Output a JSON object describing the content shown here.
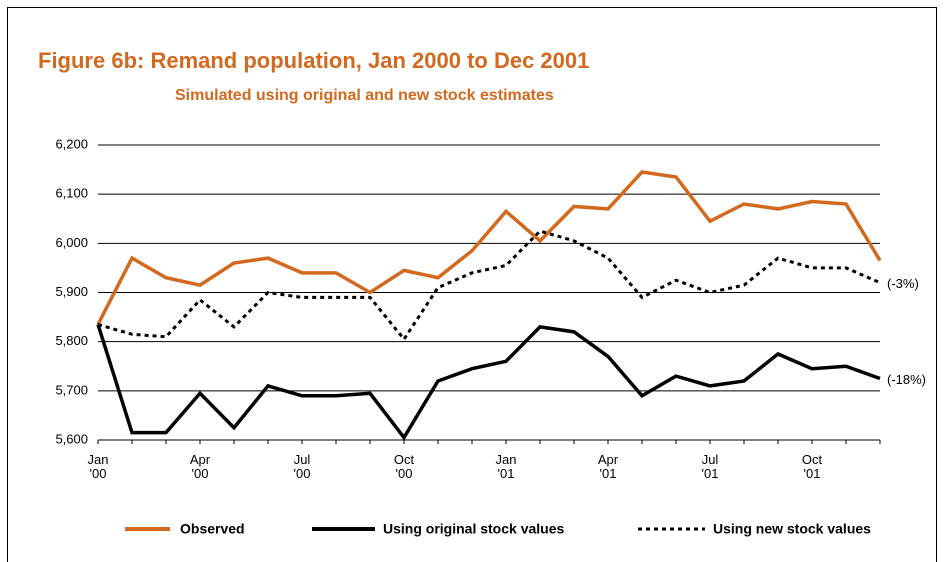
{
  "chart_data": {
    "type": "line",
    "title": "Figure 6b: Remand population, Jan 2000 to Dec 2001",
    "subtitle": "Simulated using original and new stock estimates",
    "categories": [
      "Jan '00",
      null,
      null,
      "Apr '00",
      null,
      null,
      "Jul '00",
      null,
      null,
      "Oct '00",
      null,
      null,
      "Jan '01",
      null,
      null,
      "Apr '01",
      null,
      null,
      "Jul '01",
      null,
      null,
      "Oct '01",
      null,
      null
    ],
    "ylim": [
      5600,
      6200
    ],
    "yticks": [
      {
        "value": 5600,
        "label": "5,600"
      },
      {
        "value": 5700,
        "label": "5,700"
      },
      {
        "value": 5800,
        "label": "5,800"
      },
      {
        "value": 5900,
        "label": "5,900"
      },
      {
        "value": 6000,
        "label": "6,000"
      },
      {
        "value": 6100,
        "label": "6,100"
      },
      {
        "value": 6200,
        "label": "6,200"
      }
    ],
    "grid": true,
    "legend": "bottom",
    "series": [
      {
        "name": "Observed",
        "color": "#d2691e",
        "dash": "solid",
        "values": [
          5835,
          5970,
          5930,
          5915,
          5960,
          5970,
          5940,
          5940,
          5900,
          5945,
          5930,
          5985,
          6065,
          6005,
          6075,
          6070,
          6145,
          6135,
          6045,
          6080,
          6070,
          6085,
          6080,
          5965
        ]
      },
      {
        "name": "Using original stock values",
        "color": "#000000",
        "dash": "solid",
        "end_label": "(-18%)",
        "values": [
          5835,
          5615,
          5615,
          5695,
          5625,
          5710,
          5690,
          5690,
          5695,
          5605,
          5720,
          5745,
          5760,
          5830,
          5820,
          5770,
          5690,
          5730,
          5710,
          5720,
          5775,
          5745,
          5750,
          5725
        ]
      },
      {
        "name": "Using new stock values",
        "color": "#000000",
        "dash": "dotted",
        "end_label": "(-3%)",
        "values": [
          5835,
          5815,
          5810,
          5885,
          5830,
          5900,
          5890,
          5890,
          5890,
          5805,
          5910,
          5940,
          5955,
          6025,
          6005,
          5970,
          5890,
          5925,
          5900,
          5915,
          5970,
          5950,
          5950,
          5920
        ]
      }
    ]
  }
}
